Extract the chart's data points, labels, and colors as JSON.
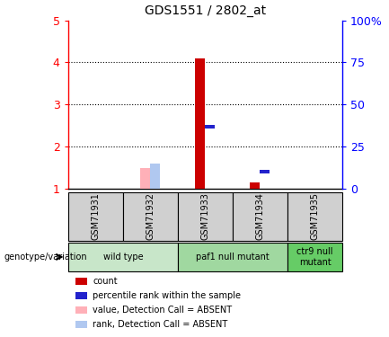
{
  "title": "GDS1551 / 2802_at",
  "samples": [
    "GSM71931",
    "GSM71932",
    "GSM71933",
    "GSM71934",
    "GSM71935"
  ],
  "ylim": [
    1,
    5
  ],
  "yticks": [
    1,
    2,
    3,
    4,
    5
  ],
  "ytick_labels": [
    "1",
    "2",
    "3",
    "4",
    "5"
  ],
  "right_ytick_labels": [
    "0",
    "25",
    "50",
    "75",
    "100%"
  ],
  "bar_data": {
    "GSM71931": {
      "value": null,
      "rank": null,
      "absent_value": null,
      "absent_rank": null
    },
    "GSM71932": {
      "value": null,
      "rank": null,
      "absent_value": 1.5,
      "absent_rank": 1.6
    },
    "GSM71933": {
      "value": 4.1,
      "rank": 2.47,
      "absent_value": null,
      "absent_rank": null
    },
    "GSM71934": {
      "value": 1.15,
      "rank": 1.4,
      "absent_value": null,
      "absent_rank": null
    },
    "GSM71935": {
      "value": null,
      "rank": null,
      "absent_value": null,
      "absent_rank": null
    }
  },
  "colors": {
    "red_bar": "#cc0000",
    "blue_bar": "#2222cc",
    "pink_bar": "#ffb0b8",
    "lightblue_bar": "#b0c8f0",
    "sample_box_bg": "#d0d0d0",
    "group_wild_bg": "#c8e6c9",
    "group_paf1_bg": "#a0d8a0",
    "group_ctr9_bg": "#66cc66"
  },
  "groups": [
    {
      "label": "wild type",
      "samples_idx": [
        0,
        1
      ],
      "color": "#c8e6c9"
    },
    {
      "label": "paf1 null mutant",
      "samples_idx": [
        2,
        3
      ],
      "color": "#a0d8a0"
    },
    {
      "label": "ctr9 null\nmutant",
      "samples_idx": [
        4
      ],
      "color": "#66cc66"
    }
  ],
  "legend_colors": [
    "#cc0000",
    "#2222cc",
    "#ffb0b8",
    "#b0c8f0"
  ],
  "legend_labels": [
    "count",
    "percentile rank within the sample",
    "value, Detection Call = ABSENT",
    "rank, Detection Call = ABSENT"
  ]
}
